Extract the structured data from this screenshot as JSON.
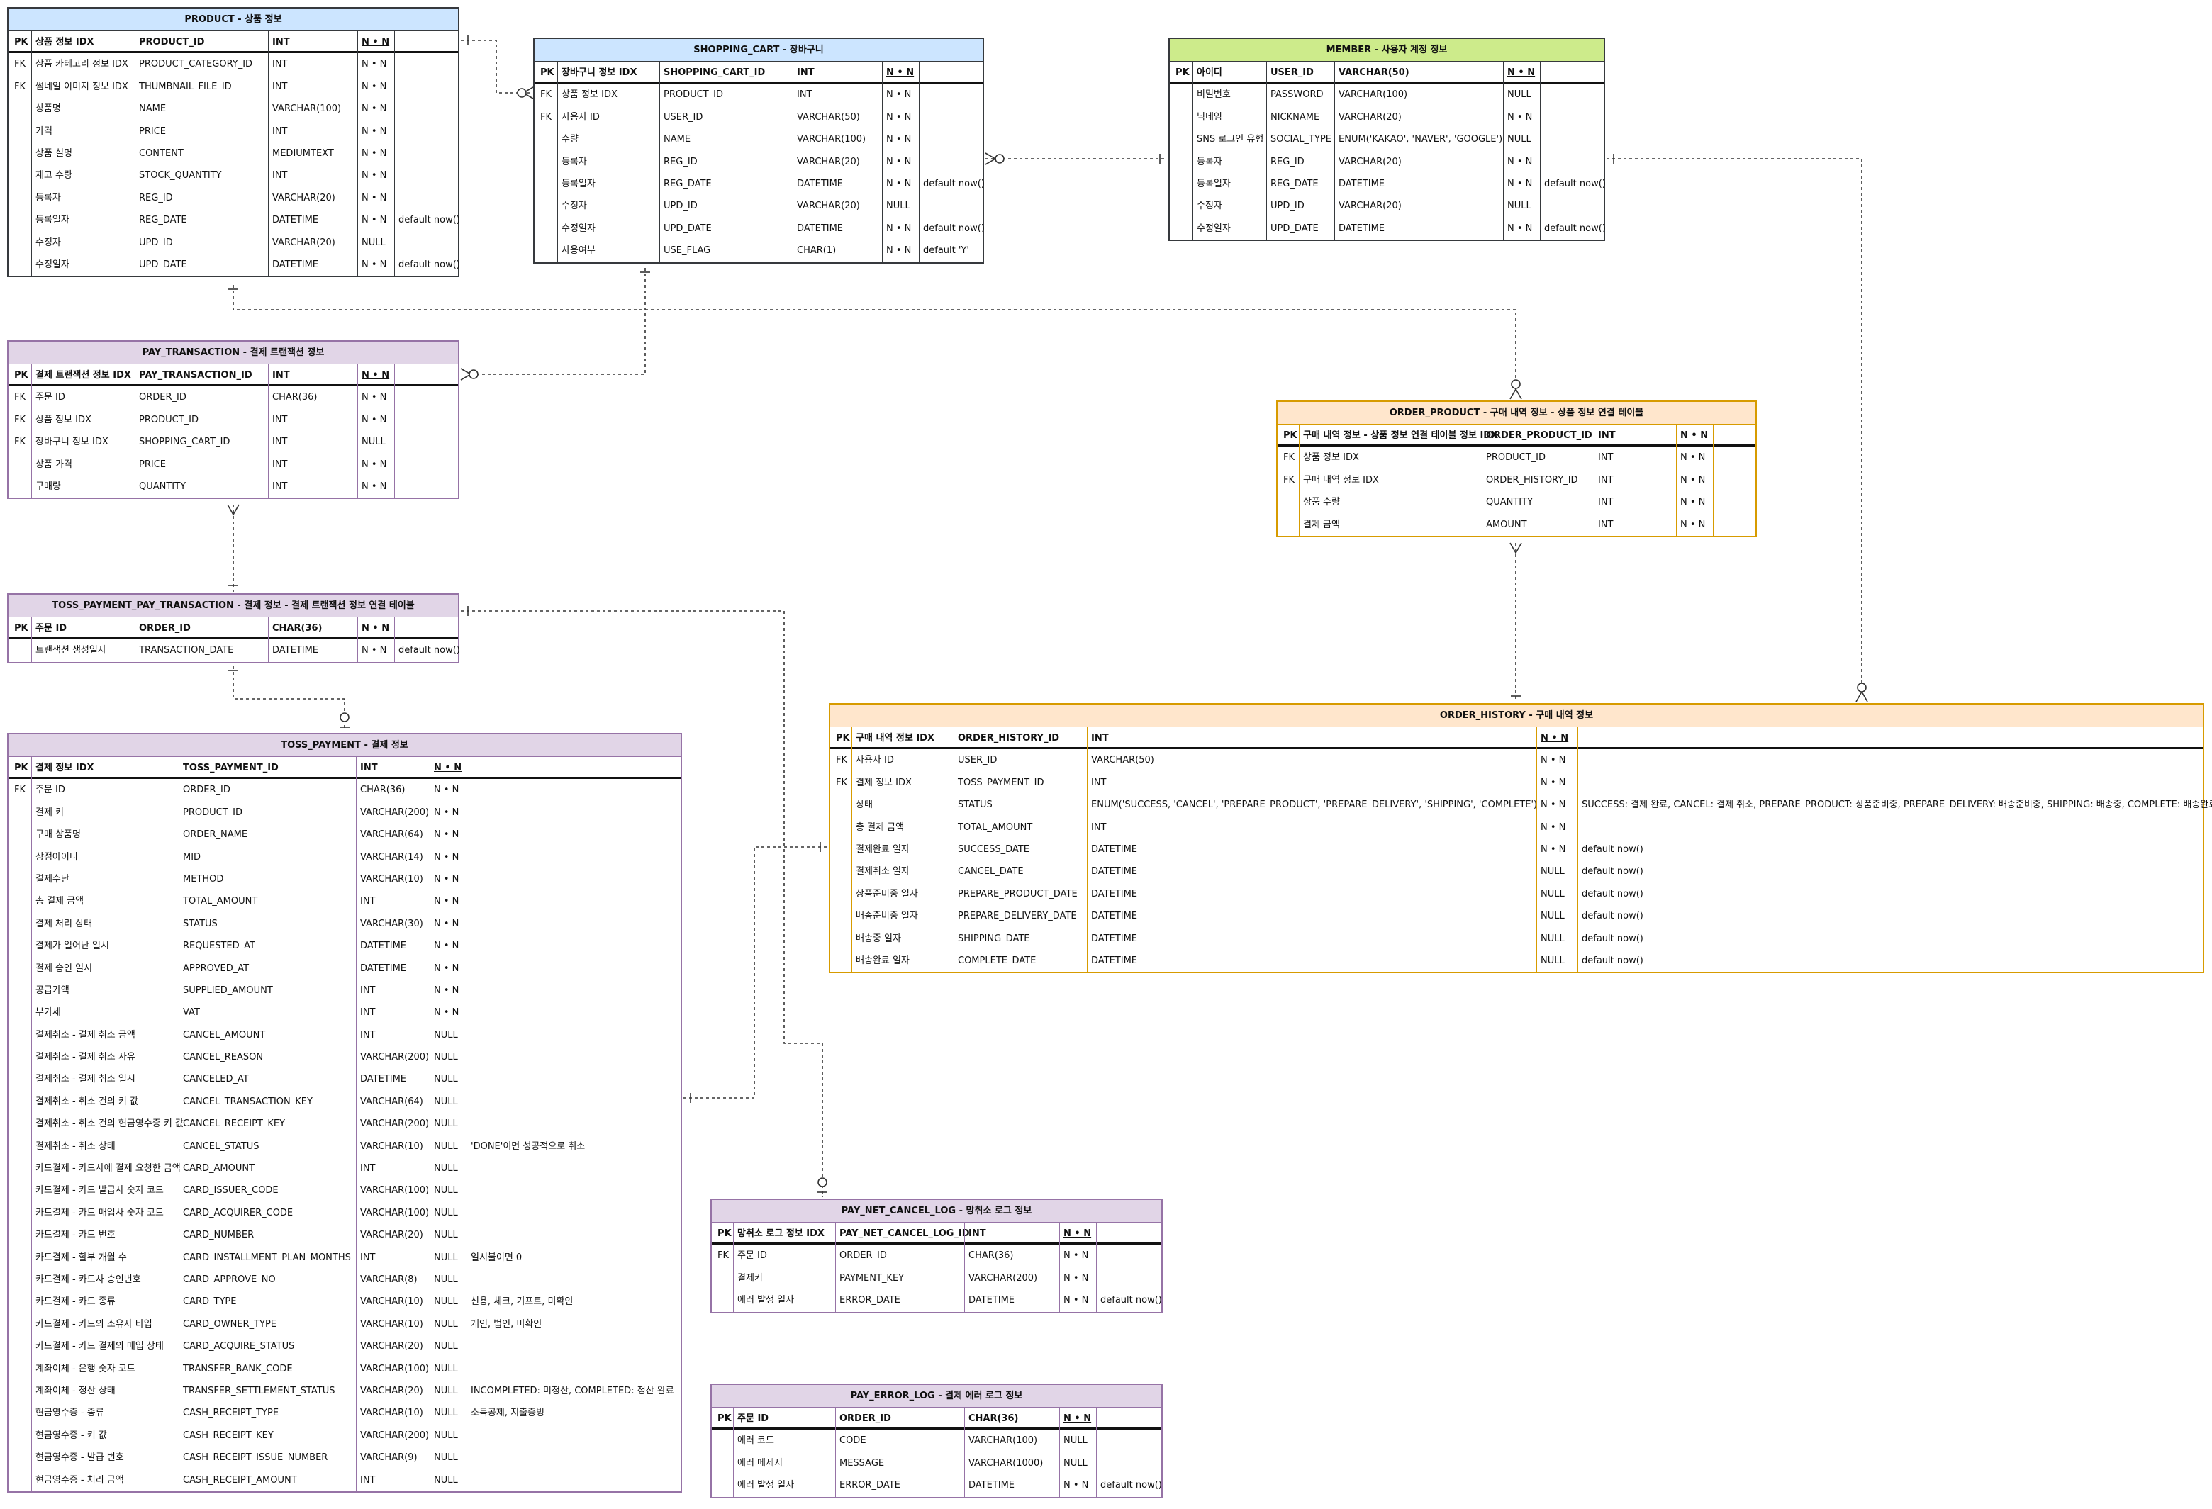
{
  "colors": {
    "purple_fill": "#e1d5e7",
    "purple_stroke": "#9673a6",
    "blue_fill": "#cce5ff",
    "blue_stroke": "#36393d",
    "green_fill": "#cdeb8b",
    "green_stroke": "#36393d",
    "orange_fill": "#ffe6cc",
    "orange_stroke": "#d79b00",
    "line": "#333333"
  },
  "entities": [
    {
      "id": "product",
      "title": "PRODUCT - 상품 정보",
      "theme": "blue",
      "header": [
        "PK",
        "상품 정보 IDX",
        "PRODUCT_ID",
        "INT",
        "N • N",
        ""
      ],
      "rows": [
        [
          "FK",
          "상품 카테고리 정보 IDX",
          "PRODUCT_CATEGORY_ID",
          "INT",
          "N • N",
          ""
        ],
        [
          "FK",
          "썸네일 이미지 정보 IDX",
          "THUMBNAIL_FILE_ID",
          "INT",
          "N • N",
          ""
        ],
        [
          "",
          "상품명",
          "NAME",
          "VARCHAR(100)",
          "N • N",
          ""
        ],
        [
          "",
          "가격",
          "PRICE",
          "INT",
          "N • N",
          ""
        ],
        [
          "",
          "상품 설명",
          "CONTENT",
          "MEDIUMTEXT",
          "N • N",
          ""
        ],
        [
          "",
          "재고 수량",
          "STOCK_QUANTITY",
          "INT",
          "N • N",
          ""
        ],
        [
          "",
          "등록자",
          "REG_ID",
          "VARCHAR(20)",
          "N • N",
          ""
        ],
        [
          "",
          "등록일자",
          "REG_DATE",
          "DATETIME",
          "N • N",
          "default now()"
        ],
        [
          "",
          "수정자",
          "UPD_ID",
          "VARCHAR(20)",
          "NULL",
          ""
        ],
        [
          "",
          "수정일자",
          "UPD_DATE",
          "DATETIME",
          "N • N",
          "default now()"
        ]
      ]
    },
    {
      "id": "shopping_cart",
      "title": "SHOPPING_CART - 장바구니",
      "theme": "blue",
      "header": [
        "PK",
        "장바구니 정보 IDX",
        "SHOPPING_CART_ID",
        "INT",
        "N • N",
        ""
      ],
      "rows": [
        [
          "FK",
          "상품 정보 IDX",
          "PRODUCT_ID",
          "INT",
          "N • N",
          ""
        ],
        [
          "FK",
          "사용자 ID",
          "USER_ID",
          "VARCHAR(50)",
          "N • N",
          ""
        ],
        [
          "",
          "수량",
          "NAME",
          "VARCHAR(100)",
          "N • N",
          ""
        ],
        [
          "",
          "등록자",
          "REG_ID",
          "VARCHAR(20)",
          "N • N",
          ""
        ],
        [
          "",
          "등록일자",
          "REG_DATE",
          "DATETIME",
          "N • N",
          "default now()"
        ],
        [
          "",
          "수정자",
          "UPD_ID",
          "VARCHAR(20)",
          "NULL",
          ""
        ],
        [
          "",
          "수정일자",
          "UPD_DATE",
          "DATETIME",
          "N • N",
          "default now()"
        ],
        [
          "",
          "사용여부",
          "USE_FLAG",
          "CHAR(1)",
          "N • N",
          "default 'Y'"
        ]
      ]
    },
    {
      "id": "member",
      "title": "MEMBER - 사용자 계정 정보",
      "theme": "green",
      "header": [
        "PK",
        "아이디",
        "USER_ID",
        "VARCHAR(50)",
        "N • N",
        ""
      ],
      "rows": [
        [
          "",
          "비밀번호",
          "PASSWORD",
          "VARCHAR(100)",
          "NULL",
          ""
        ],
        [
          "",
          "닉네임",
          "NICKNAME",
          "VARCHAR(20)",
          "N • N",
          ""
        ],
        [
          "",
          "SNS 로그인 유형",
          "SOCIAL_TYPE",
          "ENUM('KAKAO', 'NAVER', 'GOOGLE')",
          "NULL",
          ""
        ],
        [
          "",
          "등록자",
          "REG_ID",
          "VARCHAR(20)",
          "N • N",
          ""
        ],
        [
          "",
          "등록일자",
          "REG_DATE",
          "DATETIME",
          "N • N",
          "default now()"
        ],
        [
          "",
          "수정자",
          "UPD_ID",
          "VARCHAR(20)",
          "NULL",
          ""
        ],
        [
          "",
          "수정일자",
          "UPD_DATE",
          "DATETIME",
          "N • N",
          "default now()"
        ]
      ]
    },
    {
      "id": "pay_transaction",
      "title": "PAY_TRANSACTION - 결제 트랜잭션 정보",
      "theme": "purple",
      "header": [
        "PK",
        "결제 트랜잭션 정보 IDX",
        "PAY_TRANSACTION_ID",
        "INT",
        "N • N",
        ""
      ],
      "rows": [
        [
          "FK",
          "주문 ID",
          "ORDER_ID",
          "CHAR(36)",
          "N • N",
          ""
        ],
        [
          "FK",
          "상품 정보 IDX",
          "PRODUCT_ID",
          "INT",
          "N • N",
          ""
        ],
        [
          "FK",
          "장바구니 정보 IDX",
          "SHOPPING_CART_ID",
          "INT",
          "NULL",
          ""
        ],
        [
          "",
          "상품 가격",
          "PRICE",
          "INT",
          "N • N",
          ""
        ],
        [
          "",
          "구매량",
          "QUANTITY",
          "INT",
          "N • N",
          ""
        ]
      ]
    },
    {
      "id": "order_product",
      "title": "ORDER_PRODUCT - 구매 내역 정보 - 상품 정보 연결 테이블",
      "theme": "orange",
      "header": [
        "PK",
        "구매 내역 정보 - 상품 정보 연결 테이블 정보 IDX",
        "ORDER_PRODUCT_ID",
        "INT",
        "N • N",
        ""
      ],
      "rows": [
        [
          "FK",
          "상품 정보 IDX",
          "PRODUCT_ID",
          "INT",
          "N • N",
          ""
        ],
        [
          "FK",
          "구매 내역 정보 IDX",
          "ORDER_HISTORY_ID",
          "INT",
          "N • N",
          ""
        ],
        [
          "",
          "상품 수량",
          "QUANTITY",
          "INT",
          "N • N",
          ""
        ],
        [
          "",
          "결제 금액",
          "AMOUNT",
          "INT",
          "N • N",
          ""
        ]
      ]
    },
    {
      "id": "toss_payment_pay_transaction",
      "title": "TOSS_PAYMENT_PAY_TRANSACTION - 결제 정보 - 결제 트랜잭션 정보 연결 테이블",
      "theme": "purple",
      "header": [
        "PK",
        "주문 ID",
        "ORDER_ID",
        "CHAR(36)",
        "N • N",
        ""
      ],
      "rows": [
        [
          "",
          "트랜잭션 생성일자",
          "TRANSACTION_DATE",
          "DATETIME",
          "N • N",
          "default now()"
        ]
      ]
    },
    {
      "id": "order_history",
      "title": "ORDER_HISTORY - 구매 내역 정보",
      "theme": "orange",
      "header": [
        "PK",
        "구매 내역 정보 IDX",
        "ORDER_HISTORY_ID",
        "INT",
        "N • N",
        ""
      ],
      "rows": [
        [
          "FK",
          "사용자 ID",
          "USER_ID",
          "VARCHAR(50)",
          "N • N",
          ""
        ],
        [
          "FK",
          "결제 정보 IDX",
          "TOSS_PAYMENT_ID",
          "INT",
          "N • N",
          ""
        ],
        [
          "",
          "상태",
          "STATUS",
          "ENUM('SUCCESS, 'CANCEL', 'PREPARE_PRODUCT', 'PREPARE_DELIVERY', 'SHIPPING', 'COMPLETE')",
          "N • N",
          "SUCCESS: 결제 완료, CANCEL: 결제 취소, PREPARE_PRODUCT: 상품준비중, PREPARE_DELIVERY: 배송준비중, SHIPPING: 배송중, COMPLETE: 배송완료"
        ],
        [
          "",
          "총 결제 금액",
          "TOTAL_AMOUNT",
          "INT",
          "N • N",
          ""
        ],
        [
          "",
          "결제완료 일자",
          "SUCCESS_DATE",
          "DATETIME",
          "N • N",
          "default now()"
        ],
        [
          "",
          "결제취소 일자",
          "CANCEL_DATE",
          "DATETIME",
          "NULL",
          "default now()"
        ],
        [
          "",
          "상품준비중 일자",
          "PREPARE_PRODUCT_DATE",
          "DATETIME",
          "NULL",
          "default now()"
        ],
        [
          "",
          "배송준비중 일자",
          "PREPARE_DELIVERY_DATE",
          "DATETIME",
          "NULL",
          "default now()"
        ],
        [
          "",
          "배송중 일자",
          "SHIPPING_DATE",
          "DATETIME",
          "NULL",
          "default now()"
        ],
        [
          "",
          "배송완료 일자",
          "COMPLETE_DATE",
          "DATETIME",
          "NULL",
          "default now()"
        ]
      ]
    },
    {
      "id": "toss_payment",
      "title": "TOSS_PAYMENT - 결제 정보",
      "theme": "purple",
      "header": [
        "PK",
        "결제 정보 IDX",
        "TOSS_PAYMENT_ID",
        "INT",
        "N • N",
        ""
      ],
      "rows": [
        [
          "FK",
          "주문 ID",
          "ORDER_ID",
          "CHAR(36)",
          "N • N",
          ""
        ],
        [
          "",
          "결제 키",
          "PRODUCT_ID",
          "VARCHAR(200)",
          "N • N",
          ""
        ],
        [
          "",
          "구매 상품명",
          "ORDER_NAME",
          "VARCHAR(64)",
          "N • N",
          ""
        ],
        [
          "",
          "상점아이디",
          "MID",
          "VARCHAR(14)",
          "N • N",
          ""
        ],
        [
          "",
          "결제수단",
          "METHOD",
          "VARCHAR(10)",
          "N • N",
          ""
        ],
        [
          "",
          "총 결제 금액",
          "TOTAL_AMOUNT",
          "INT",
          "N • N",
          ""
        ],
        [
          "",
          "결제 처리 상태",
          "STATUS",
          "VARCHAR(30)",
          "N • N",
          ""
        ],
        [
          "",
          "결제가 일어난 일시",
          "REQUESTED_AT",
          "DATETIME",
          "N • N",
          ""
        ],
        [
          "",
          "결제 승인 일시",
          "APPROVED_AT",
          "DATETIME",
          "N • N",
          ""
        ],
        [
          "",
          "공급가액",
          "SUPPLIED_AMOUNT",
          "INT",
          "N • N",
          ""
        ],
        [
          "",
          "부가세",
          "VAT",
          "INT",
          "N • N",
          ""
        ],
        [
          "",
          "결제취소 - 결제 취소 금액",
          "CANCEL_AMOUNT",
          "INT",
          "NULL",
          ""
        ],
        [
          "",
          "결제취소 - 결제 취소 사유",
          "CANCEL_REASON",
          "VARCHAR(200)",
          "NULL",
          ""
        ],
        [
          "",
          "결제취소 - 결제 취소 일시",
          "CANCELED_AT",
          "DATETIME",
          "NULL",
          ""
        ],
        [
          "",
          "결제취소 - 취소 건의 키 값",
          "CANCEL_TRANSACTION_KEY",
          "VARCHAR(64)",
          "NULL",
          ""
        ],
        [
          "",
          "결제취소 - 취소 건의 현금영수증 키 값",
          "CANCEL_RECEIPT_KEY",
          "VARCHAR(200)",
          "NULL",
          ""
        ],
        [
          "",
          "결제취소 - 취소 상태",
          "CANCEL_STATUS",
          "VARCHAR(10)",
          "NULL",
          "'DONE'이면 성공적으로 취소"
        ],
        [
          "",
          "카드결제 - 카드사에 결제 요청한 금액",
          "CARD_AMOUNT",
          "INT",
          "NULL",
          ""
        ],
        [
          "",
          "카드결제 - 카드 발급사 숫자 코드",
          "CARD_ISSUER_CODE",
          "VARCHAR(100)",
          "NULL",
          ""
        ],
        [
          "",
          "카드결제 - 카드 매입사 숫자 코드",
          "CARD_ACQUIRER_CODE",
          "VARCHAR(100)",
          "NULL",
          ""
        ],
        [
          "",
          "카드결제 - 카드 번호",
          "CARD_NUMBER",
          "VARCHAR(20)",
          "NULL",
          ""
        ],
        [
          "",
          "카드결제 - 할부 개월 수",
          "CARD_INSTALLMENT_PLAN_MONTHS",
          "INT",
          "NULL",
          "일시불이면 0"
        ],
        [
          "",
          "카드결제 - 카드사 승인번호",
          "CARD_APPROVE_NO",
          "VARCHAR(8)",
          "NULL",
          ""
        ],
        [
          "",
          "카드결제 - 카드 종류",
          "CARD_TYPE",
          "VARCHAR(10)",
          "NULL",
          "신용, 체크, 기프트, 미확인"
        ],
        [
          "",
          "카드결제 - 카드의 소유자 타입",
          "CARD_OWNER_TYPE",
          "VARCHAR(10)",
          "NULL",
          "개인, 법인, 미확인"
        ],
        [
          "",
          "카드결제 - 카드 결제의 매입 상태",
          "CARD_ACQUIRE_STATUS",
          "VARCHAR(20)",
          "NULL",
          ""
        ],
        [
          "",
          "계좌이체 - 은행 숫자 코드",
          "TRANSFER_BANK_CODE",
          "VARCHAR(100)",
          "NULL",
          ""
        ],
        [
          "",
          "계좌이체 - 정산 상태",
          "TRANSFER_SETTLEMENT_STATUS",
          "VARCHAR(20)",
          "NULL",
          "INCOMPLETED: 미정산, COMPLETED: 정산 완료"
        ],
        [
          "",
          "현금영수증 - 종류",
          "CASH_RECEIPT_TYPE",
          "VARCHAR(10)",
          "NULL",
          "소득공제, 지출증빙"
        ],
        [
          "",
          "현금영수증 - 키 값",
          "CASH_RECEIPT_KEY",
          "VARCHAR(200)",
          "NULL",
          ""
        ],
        [
          "",
          "현금영수증 - 발급 번호",
          "CASH_RECEIPT_ISSUE_NUMBER",
          "VARCHAR(9)",
          "NULL",
          ""
        ],
        [
          "",
          "현금영수증 - 처리 금액",
          "CASH_RECEIPT_AMOUNT",
          "INT",
          "NULL",
          ""
        ]
      ]
    },
    {
      "id": "pay_net_cancel_log",
      "title": "PAY_NET_CANCEL_LOG - 망취소 로그 정보",
      "theme": "purple",
      "header": [
        "PK",
        "망취소 로그 정보 IDX",
        "PAY_NET_CANCEL_LOG_ID",
        "INT",
        "N • N",
        ""
      ],
      "rows": [
        [
          "FK",
          "주문 ID",
          "ORDER_ID",
          "CHAR(36)",
          "N • N",
          ""
        ],
        [
          "",
          "결제키",
          "PAYMENT_KEY",
          "VARCHAR(200)",
          "N • N",
          ""
        ],
        [
          "",
          "에러 발생 일자",
          "ERROR_DATE",
          "DATETIME",
          "N • N",
          "default now()"
        ]
      ]
    },
    {
      "id": "pay_error_log",
      "title": "PAY_ERROR_LOG - 결제 에러 로그 정보",
      "theme": "purple",
      "header": [
        "PK",
        "주문 ID",
        "ORDER_ID",
        "CHAR(36)",
        "N • N",
        ""
      ],
      "rows": [
        [
          "",
          "에러 코드",
          "CODE",
          "VARCHAR(100)",
          "NULL",
          ""
        ],
        [
          "",
          "에러 메세지",
          "MESSAGE",
          "VARCHAR(1000)",
          "NULL",
          ""
        ],
        [
          "",
          "에러 발생 일자",
          "ERROR_DATE",
          "DATETIME",
          "N • N",
          "default now()"
        ]
      ]
    }
  ]
}
